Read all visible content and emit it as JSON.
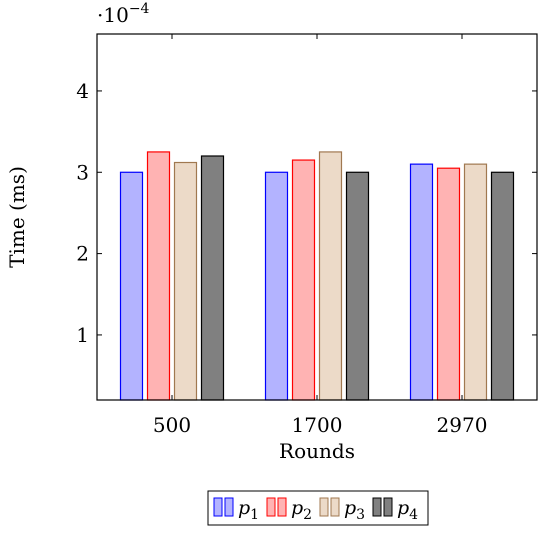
{
  "chart_data": {
    "type": "bar",
    "title": "",
    "xlabel": "Rounds",
    "ylabel": "Time (ms)",
    "y_scale_note": "·10^−4",
    "y_scale_base": "·10",
    "y_scale_exp": "−4",
    "categories": [
      "500",
      "1700",
      "2970"
    ],
    "ylim": [
      0.2,
      4.7
    ],
    "yticks": [
      1,
      2,
      3,
      4
    ],
    "grid": false,
    "legend_position": "bottom",
    "series": [
      {
        "name": "p1",
        "label_base": "p",
        "label_sub": "1",
        "values": [
          3.0,
          3.0,
          3.1
        ],
        "fill": "#b3b3ff",
        "stroke": "#0000ff"
      },
      {
        "name": "p2",
        "label_base": "p",
        "label_sub": "2",
        "values": [
          3.25,
          3.15,
          3.05
        ],
        "fill": "#ffb3b3",
        "stroke": "#ff0000"
      },
      {
        "name": "p3",
        "label_base": "p",
        "label_sub": "3",
        "values": [
          3.12,
          3.25,
          3.1
        ],
        "fill": "#ecdac8",
        "stroke": "#a07850"
      },
      {
        "name": "p4",
        "label_base": "p",
        "label_sub": "4",
        "values": [
          3.2,
          3.0,
          3.0
        ],
        "fill": "#808080",
        "stroke": "#000000"
      }
    ]
  }
}
